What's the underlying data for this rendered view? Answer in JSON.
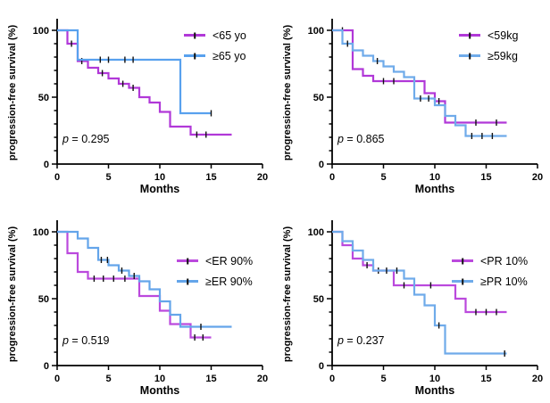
{
  "axis_color": "#000000",
  "accent_colors": {
    "magenta": "#b138d8",
    "blue": "#58a1ee"
  },
  "chart_data": [
    {
      "type": "line",
      "subtype": "kaplan-meier-step",
      "title": "",
      "xlabel": "Months",
      "ylabel": "progression-free survival (%)",
      "p_label": "p = 0.295",
      "xlim": [
        0,
        20
      ],
      "ylim": [
        0,
        100
      ],
      "xticks": [
        0,
        5,
        10,
        15,
        20
      ],
      "yticks": [
        0,
        50,
        100
      ],
      "legend_position": "top-right-inside",
      "series": [
        {
          "name": "<65 yo",
          "color": "#b138d8",
          "points": [
            [
              0,
              100
            ],
            [
              1,
              90
            ],
            [
              2,
              77
            ],
            [
              3,
              72
            ],
            [
              4,
              68
            ],
            [
              5,
              64
            ],
            [
              6,
              60
            ],
            [
              7,
              57
            ],
            [
              8,
              50
            ],
            [
              9,
              46
            ],
            [
              10,
              39
            ],
            [
              11,
              28
            ],
            [
              13,
              22
            ],
            [
              17,
              22
            ]
          ],
          "censors": [
            [
              1.4,
              90
            ],
            [
              2.4,
              77
            ],
            [
              4.4,
              68
            ],
            [
              6.4,
              60
            ],
            [
              7.4,
              57
            ],
            [
              13.6,
              22
            ],
            [
              14.5,
              22
            ]
          ]
        },
        {
          "name": "≥65 yo",
          "color": "#58a1ee",
          "points": [
            [
              0,
              100
            ],
            [
              2,
              78
            ],
            [
              12,
              38
            ],
            [
              15,
              38
            ]
          ],
          "censors": [
            [
              4.2,
              78
            ],
            [
              5.0,
              78
            ],
            [
              6.6,
              78
            ],
            [
              7.4,
              78
            ],
            [
              15,
              38
            ]
          ]
        }
      ]
    },
    {
      "type": "line",
      "subtype": "kaplan-meier-step",
      "title": "",
      "xlabel": "Months",
      "ylabel": "progression-free survival (%)",
      "p_label": "p = 0.865",
      "xlim": [
        0,
        20
      ],
      "ylim": [
        0,
        100
      ],
      "xticks": [
        0,
        5,
        10,
        15,
        20
      ],
      "yticks": [
        0,
        50,
        100
      ],
      "legend_position": "top-right-inside",
      "series": [
        {
          "name": "<59kg",
          "color": "#b138d8",
          "points": [
            [
              0,
              100
            ],
            [
              2,
              71
            ],
            [
              3,
              66
            ],
            [
              4,
              62
            ],
            [
              9,
              53
            ],
            [
              10,
              47
            ],
            [
              11,
              31
            ],
            [
              17,
              31
            ]
          ],
          "censors": [
            [
              1.0,
              100
            ],
            [
              5.0,
              62
            ],
            [
              6.0,
              62
            ],
            [
              10.4,
              47
            ],
            [
              14,
              31
            ],
            [
              16,
              31
            ]
          ]
        },
        {
          "name": "≥59kg",
          "color": "#6fabea",
          "points": [
            [
              0,
              100
            ],
            [
              1,
              90
            ],
            [
              2,
              85
            ],
            [
              3,
              81
            ],
            [
              4,
              77
            ],
            [
              5,
              73
            ],
            [
              6,
              69
            ],
            [
              7,
              65
            ],
            [
              8,
              49
            ],
            [
              10,
              44
            ],
            [
              11,
              36
            ],
            [
              12,
              29
            ],
            [
              13,
              21
            ],
            [
              17,
              21
            ]
          ],
          "censors": [
            [
              1.5,
              90
            ],
            [
              4.4,
              77
            ],
            [
              8.6,
              49
            ],
            [
              9.4,
              49
            ],
            [
              13.6,
              21
            ],
            [
              14.6,
              21
            ],
            [
              15.6,
              21
            ]
          ]
        }
      ]
    },
    {
      "type": "line",
      "subtype": "kaplan-meier-step",
      "title": "",
      "xlabel": "Months",
      "ylabel": "progression-free survival (%)",
      "p_label": "p = 0.519",
      "xlim": [
        0,
        20
      ],
      "ylim": [
        0,
        100
      ],
      "xticks": [
        0,
        5,
        10,
        15,
        20
      ],
      "yticks": [
        0,
        50,
        100
      ],
      "legend_position": "upper-right-inside",
      "series": [
        {
          "name": "<ER 90%",
          "color": "#bb49dd",
          "points": [
            [
              0,
              100
            ],
            [
              1,
              84
            ],
            [
              2,
              70
            ],
            [
              3,
              65
            ],
            [
              8,
              52
            ],
            [
              10,
              41
            ],
            [
              11,
              31
            ],
            [
              13,
              21
            ],
            [
              15,
              21
            ]
          ],
          "censors": [
            [
              3.6,
              65
            ],
            [
              4.5,
              65
            ],
            [
              5.5,
              65
            ],
            [
              6.6,
              65
            ],
            [
              13.4,
              21
            ],
            [
              14.2,
              21
            ]
          ]
        },
        {
          "name": "≥ER 90%",
          "color": "#64a5ea",
          "points": [
            [
              0,
              100
            ],
            [
              2,
              95
            ],
            [
              3,
              88
            ],
            [
              4,
              79
            ],
            [
              5,
              75
            ],
            [
              6,
              71
            ],
            [
              7,
              67
            ],
            [
              8,
              63
            ],
            [
              9,
              57
            ],
            [
              10,
              48
            ],
            [
              11,
              38
            ],
            [
              12,
              29
            ],
            [
              17,
              29
            ]
          ],
          "censors": [
            [
              4.3,
              79
            ],
            [
              4.9,
              79
            ],
            [
              6.3,
              71
            ],
            [
              7.5,
              67
            ],
            [
              14,
              29
            ]
          ]
        }
      ]
    },
    {
      "type": "line",
      "subtype": "kaplan-meier-step",
      "title": "",
      "xlabel": "Months",
      "ylabel": "progression-free survival (%)",
      "p_label": "p = 0.237",
      "xlim": [
        0,
        20
      ],
      "ylim": [
        0,
        100
      ],
      "xticks": [
        0,
        5,
        10,
        15,
        20
      ],
      "yticks": [
        0,
        50,
        100
      ],
      "legend_position": "upper-right-inside",
      "series": [
        {
          "name": "<PR 10%",
          "color": "#bb49dd",
          "points": [
            [
              0,
              100
            ],
            [
              1,
              90
            ],
            [
              2,
              80
            ],
            [
              3,
              75
            ],
            [
              4,
              71
            ],
            [
              6,
              60
            ],
            [
              12,
              50
            ],
            [
              13,
              40
            ],
            [
              17,
              40
            ]
          ],
          "censors": [
            [
              3.4,
              75
            ],
            [
              4.5,
              71
            ],
            [
              7.0,
              60
            ],
            [
              9.6,
              60
            ],
            [
              14,
              40
            ],
            [
              15,
              40
            ],
            [
              16,
              40
            ]
          ]
        },
        {
          "name": "≥PR 10%",
          "color": "#6fabea",
          "points": [
            [
              0,
              100
            ],
            [
              1,
              93
            ],
            [
              2,
              86
            ],
            [
              3,
              79
            ],
            [
              4,
              71
            ],
            [
              7,
              65
            ],
            [
              8,
              53
            ],
            [
              9,
              45
            ],
            [
              10,
              30
            ],
            [
              11,
              9
            ],
            [
              17,
              9
            ]
          ],
          "censors": [
            [
              5.3,
              71
            ],
            [
              6.3,
              71
            ],
            [
              10.4,
              30
            ],
            [
              16.8,
              9
            ]
          ]
        }
      ]
    }
  ]
}
